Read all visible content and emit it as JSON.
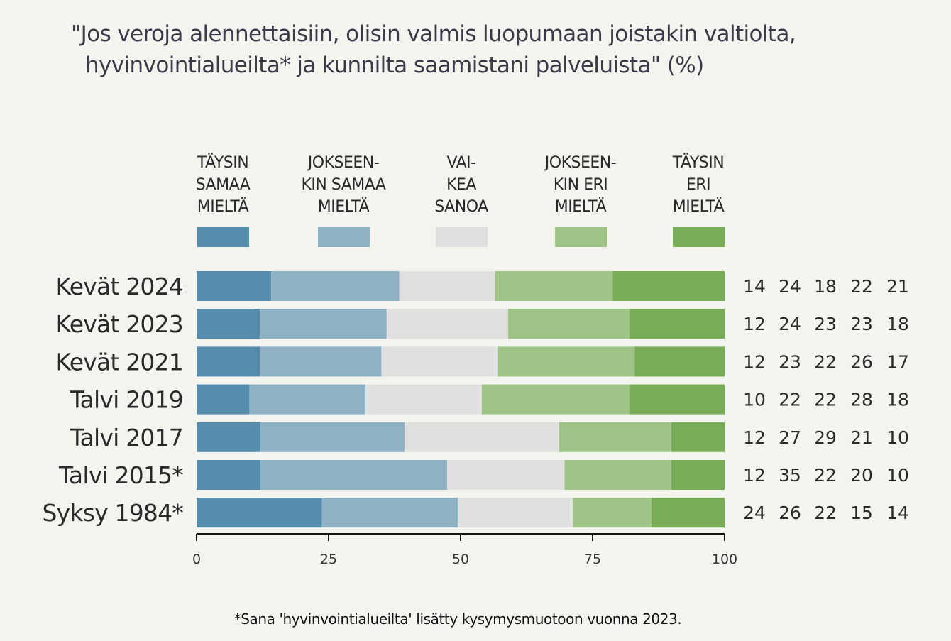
{
  "chart_data": {
    "type": "bar",
    "orientation": "horizontal",
    "stacked": true,
    "title_lines": [
      "\"Jos veroja alennettaisiin, olisin valmis luopumaan joistakin valtiolta,",
      "hyvinvointialueilta* ja kunnilta saamistani palveluista\" (%)"
    ],
    "categories": [
      "Kevät 2024",
      "Kevät 2023",
      "Kevät 2021",
      "Talvi 2019",
      "Talvi 2017",
      "Talvi 2015*",
      "Syksy 1984*"
    ],
    "series": [
      {
        "name": "TÄYSIN\nSAMAA\nMIELTÄ",
        "color": "#568dad",
        "values": [
          14,
          12,
          12,
          10,
          12,
          12,
          24
        ]
      },
      {
        "name": "JOKSEEN-\nKIN SAMAA\nMIELTÄ",
        "color": "#8eb1c4",
        "values": [
          24,
          24,
          23,
          22,
          27,
          35,
          26
        ]
      },
      {
        "name": "VAI-\nKEA\nSANOA",
        "color": "#e0e0e0",
        "values": [
          18,
          23,
          22,
          22,
          29,
          22,
          22
        ]
      },
      {
        "name": "JOKSEEN-\nKIN ERI\nMIELTÄ",
        "color": "#a0c487",
        "values": [
          22,
          23,
          26,
          28,
          21,
          20,
          15
        ]
      },
      {
        "name": "TÄYSIN\nERI\nMIELTÄ",
        "color": "#78ac57",
        "values": [
          21,
          18,
          17,
          18,
          10,
          10,
          14
        ]
      }
    ],
    "xlabel": "",
    "ylabel": "",
    "xlim": [
      0,
      100
    ],
    "xticks": [
      0,
      25,
      50,
      75,
      100
    ],
    "grid": false,
    "legend_position": "top",
    "value_labels_position": "right",
    "footnote": "*Sana 'hyvinvointialueilta' lisätty kysymysmuotoon vuonna 2023."
  }
}
